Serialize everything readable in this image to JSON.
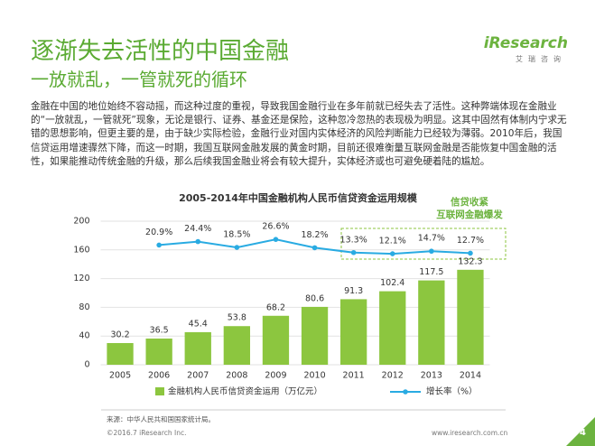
{
  "header": {
    "title": "逐渐失去活性的中国金融",
    "subtitle": "一放就乱，一管就死的循环",
    "logo": "iResearch",
    "logo_sub": "艾瑞咨询"
  },
  "body": "金融在中国的地位始终不容动摇，而这种过度的重视，导致我国金融行业在多年前就已经失去了活性。这种弊端体现在金融业的“一放就乱，一管就死”现象，无论是银行、证券、基金还是保险，这种忽冷忽热的表现极为明显。这其中固然有体制内宁求无错的思想影响，但更主要的是，由于缺少实际检验，金融行业对国内实体经济的风险判断能力已经较为薄弱。2010年后，我国信贷运用增速骤然下降，而这一时期，我国互联网金融发展的黄金时期，目前还很难衡量互联网金融是否能恢复中国金融的活性，如果能推动传统金融的升级，那么后续我国金融业将会有较大提升，实体经济或也可避免硬着陆的尴尬。",
  "chart_data": {
    "type": "bar",
    "title": "2005-2014年中国金融机构人民币信贷资金运用规模",
    "categories": [
      "2005",
      "2006",
      "2007",
      "2008",
      "2009",
      "2010",
      "2011",
      "2012",
      "2013",
      "2014"
    ],
    "series": [
      {
        "name": "金融机构人民币信贷资金运用（万亿元）",
        "color": "#8cc63f",
        "type": "bar",
        "values": [
          30.2,
          36.5,
          45.4,
          53.8,
          68.2,
          80.6,
          91.3,
          102.4,
          117.5,
          132.3
        ]
      },
      {
        "name": "增长率（%）",
        "color": "#29abe2",
        "type": "line",
        "axis": "y2",
        "values": [
          null,
          20.9,
          24.4,
          18.5,
          26.6,
          18.2,
          13.3,
          12.1,
          14.7,
          12.7
        ],
        "value_labels": [
          null,
          "20.9%",
          "24.4%",
          "18.5%",
          "26.6%",
          "18.2%",
          "13.3%",
          "12.1%",
          "14.7%",
          "12.7%"
        ]
      }
    ],
    "ylim": [
      0,
      200
    ],
    "yticks": [
      0,
      40,
      80,
      120,
      160,
      200
    ],
    "y2lim": [
      -100,
      45
    ],
    "grid": true,
    "annotation": [
      "信贷收紧",
      "互联网金融爆发"
    ]
  },
  "footer": {
    "source": "来源：中华人民共和国国家统计局。",
    "copyright": "©2016.7 iResearch Inc.",
    "website": "www.iresearch.com.cn",
    "page": "4"
  }
}
